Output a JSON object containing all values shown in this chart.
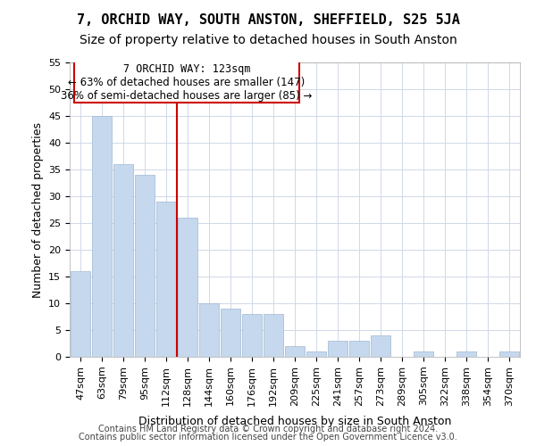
{
  "title1": "7, ORCHID WAY, SOUTH ANSTON, SHEFFIELD, S25 5JA",
  "title2": "Size of property relative to detached houses in South Anston",
  "xlabel": "Distribution of detached houses by size in South Anston",
  "ylabel": "Number of detached properties",
  "categories": [
    "47sqm",
    "63sqm",
    "79sqm",
    "95sqm",
    "112sqm",
    "128sqm",
    "144sqm",
    "160sqm",
    "176sqm",
    "192sqm",
    "209sqm",
    "225sqm",
    "241sqm",
    "257sqm",
    "273sqm",
    "289sqm",
    "305sqm",
    "322sqm",
    "338sqm",
    "354sqm",
    "370sqm"
  ],
  "values": [
    16,
    45,
    36,
    34,
    29,
    26,
    10,
    9,
    8,
    8,
    2,
    1,
    3,
    3,
    4,
    0,
    1,
    0,
    1,
    0,
    1
  ],
  "bar_color": "#c5d8ed",
  "bar_edge_color": "#a0b8d0",
  "grid_color": "#d0d8e8",
  "reference_line_x": 4.5,
  "annotation_text_line1": "7 ORCHID WAY: 123sqm",
  "annotation_text_line2": "← 63% of detached houses are smaller (147)",
  "annotation_text_line3": "36% of semi-detached houses are larger (85) →",
  "annotation_box_color": "#ffffff",
  "annotation_border_color": "#cc0000",
  "vline_color": "#cc0000",
  "footnote1": "Contains HM Land Registry data © Crown copyright and database right 2024.",
  "footnote2": "Contains public sector information licensed under the Open Government Licence v3.0.",
  "ylim": [
    0,
    55
  ],
  "yticks": [
    0,
    5,
    10,
    15,
    20,
    25,
    30,
    35,
    40,
    45,
    50,
    55
  ],
  "title1_fontsize": 11,
  "title2_fontsize": 10,
  "xlabel_fontsize": 9,
  "ylabel_fontsize": 9,
  "tick_fontsize": 8,
  "footnote_fontsize": 7,
  "annotation_fontsize": 8.5
}
